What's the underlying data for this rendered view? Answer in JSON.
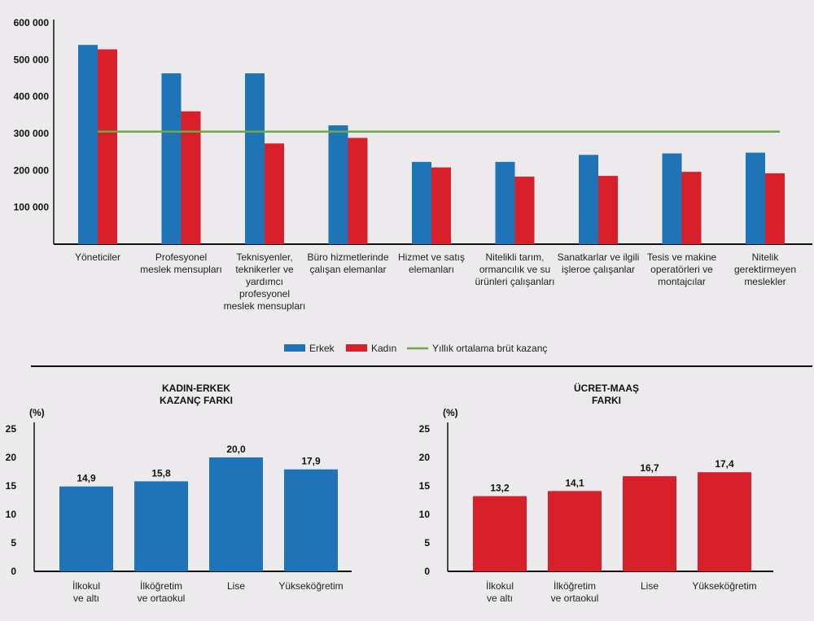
{
  "colors": {
    "erkek": "#1f73b7",
    "kadin": "#d7202a",
    "average": "#6ea84b",
    "axis": "#111111"
  },
  "chart_data": [
    {
      "type": "bar",
      "categories": [
        [
          "Yöneticiler"
        ],
        [
          "Profesyonel",
          "meslek mensupları"
        ],
        [
          "Teknisyenler,",
          "teknikerler ve",
          "yardımcı",
          "profesyonel",
          "meslek mensupları"
        ],
        [
          "Büro hizmetlerinde",
          "çalışan elemanlar"
        ],
        [
          "Hizmet ve satış",
          "elemanları"
        ],
        [
          "Nitelikli tarım,",
          "ormancılık ve su",
          "ürünleri çalışanları"
        ],
        [
          "Sanatkarlar ve ilgili",
          "işleroe çalışanlar"
        ],
        [
          "Tesis ve makine",
          "operatörleri ve",
          "montajcılar"
        ],
        [
          "Nitelik",
          "gerektirmeyen",
          "meslekler"
        ]
      ],
      "series": [
        {
          "name": "Erkek",
          "values": [
            540000,
            463000,
            463000,
            322000,
            223000,
            223000,
            242000,
            246000,
            248000
          ]
        },
        {
          "name": "Kadın",
          "values": [
            528000,
            360000,
            273000,
            288000,
            208000,
            183000,
            185000,
            196000,
            192000
          ]
        }
      ],
      "reference_line": {
        "name": "Yıllık ortalama brüt kazanç",
        "value": 305000
      },
      "yticks": [
        "100 000",
        "200 000",
        "300 000",
        "400 000",
        "500 000",
        "600 000"
      ],
      "ytick_values": [
        100000,
        200000,
        300000,
        400000,
        500000,
        600000
      ],
      "ylim": [
        0,
        600000
      ],
      "legend": "bottom"
    },
    {
      "type": "bar",
      "title": [
        "KADIN-ERKEK",
        "KAZANÇ FARKI"
      ],
      "ylabel": "(%)",
      "categories": [
        [
          "İlkokul",
          "ve altı"
        ],
        [
          "İlköğretim",
          "ve ortaokul"
        ],
        [
          "Lise"
        ],
        [
          "Yükseköğretim"
        ]
      ],
      "values": [
        14.9,
        15.8,
        20.0,
        17.9
      ],
      "data_labels": [
        "14,9",
        "15,8",
        "20,0",
        "17,9"
      ],
      "yticks": [
        "0",
        "5",
        "10",
        "15",
        "20",
        "25"
      ],
      "ytick_values": [
        0,
        5,
        10,
        15,
        20,
        25
      ],
      "ylim": [
        0,
        25
      ]
    },
    {
      "type": "bar",
      "title": [
        "ÜCRET-MAAŞ",
        "FARKI"
      ],
      "ylabel": "(%)",
      "categories": [
        [
          "İlkokul",
          "ve altı"
        ],
        [
          "İlköğretim",
          "ve ortaokul"
        ],
        [
          "Lise"
        ],
        [
          "Yükseköğretim"
        ]
      ],
      "values": [
        13.2,
        14.1,
        16.7,
        17.4
      ],
      "data_labels": [
        "13,2",
        "14,1",
        "16,7",
        "17,4"
      ],
      "yticks": [
        "0",
        "5",
        "10",
        "15",
        "20",
        "25"
      ],
      "ytick_values": [
        0,
        5,
        10,
        15,
        20,
        25
      ],
      "ylim": [
        0,
        25
      ]
    }
  ]
}
